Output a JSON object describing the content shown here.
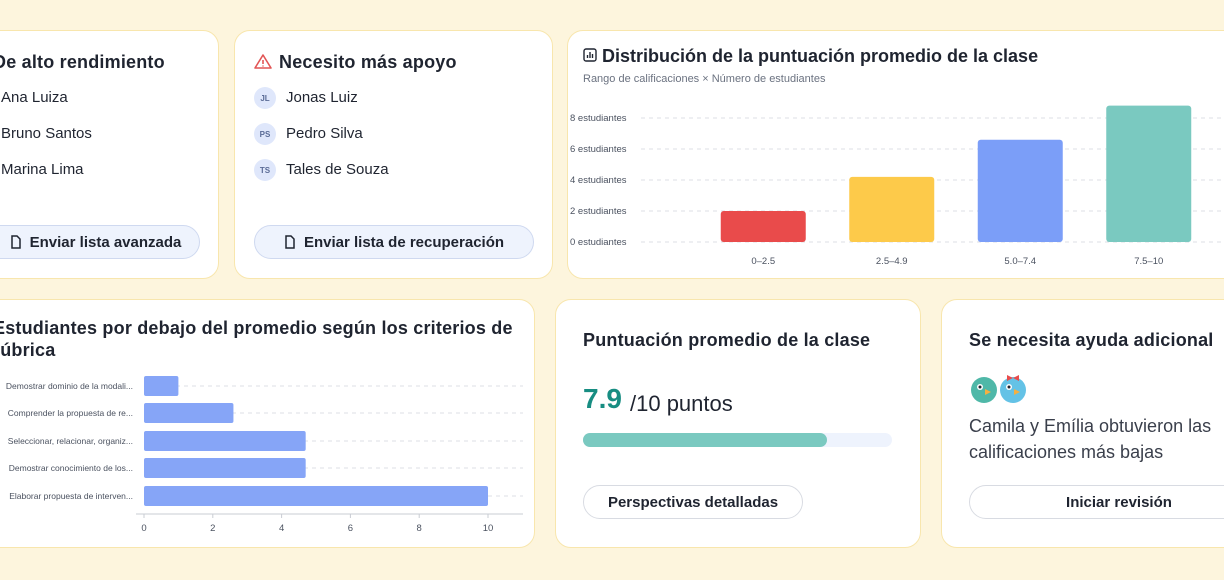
{
  "high_performers": {
    "title": "De alto rendimiento",
    "students": [
      "Ana Luiza",
      "Bruno Santos",
      "Marina Lima"
    ],
    "button": "Enviar lista avanzada"
  },
  "needs_support": {
    "title": "Necesito más apoyo",
    "students": [
      {
        "initials": "JL",
        "name": "Jonas Luiz"
      },
      {
        "initials": "PS",
        "name": "Pedro Silva"
      },
      {
        "initials": "TS",
        "name": "Tales de Souza"
      }
    ],
    "button": "Enviar lista de recuperación"
  },
  "chart_data": [
    {
      "type": "bar",
      "title": "Distribución de la puntuación promedio de la clase",
      "subtitle": "Rango de calificaciones × Número de estudiantes",
      "categories": [
        "0–2.5",
        "2.5–4.9",
        "5.0–7.4",
        "7.5–10"
      ],
      "values": [
        2,
        4.2,
        6.6,
        8.8
      ],
      "colors": [
        "#e94b4b",
        "#fdca4a",
        "#7b9ef8",
        "#7ac9c0"
      ],
      "ylim": [
        0,
        9.2
      ],
      "yticks": [
        {
          "value": 0,
          "label": "0 estudiantes"
        },
        {
          "value": 2,
          "label": "2 estudiantes"
        },
        {
          "value": 4,
          "label": "4 estudiantes"
        },
        {
          "value": 6,
          "label": "6 estudiantes"
        },
        {
          "value": 8,
          "label": "8 estudiantes"
        }
      ],
      "grid": true
    },
    {
      "type": "barh",
      "title": "Estudiantes por debajo del promedio según los criterios de rúbrica",
      "categories": [
        "Demostrar dominio de la modali...",
        "Comprender la propuesta de re...",
        "Seleccionar, relacionar, organiz...",
        "Demostrar conocimiento de los...",
        "Elaborar propuesta de interven..."
      ],
      "values": [
        1,
        2.6,
        4.7,
        4.7,
        10
      ],
      "color": "#86a5f7",
      "xlim": [
        0,
        10
      ],
      "xticks": [
        0,
        2,
        4,
        6,
        8,
        10
      ]
    }
  ],
  "average": {
    "title": "Puntuación promedio de la clase",
    "score": 7.9,
    "scale": {
      "value": 10,
      "label": "/10 puntos"
    },
    "button": "Perspectivas detalladas"
  },
  "extra_help": {
    "title": "Se necesita ayuda adicional",
    "text": "Camila y Emília obtuvieron las calificaciones más bajas",
    "button": "Iniciar revisión"
  }
}
